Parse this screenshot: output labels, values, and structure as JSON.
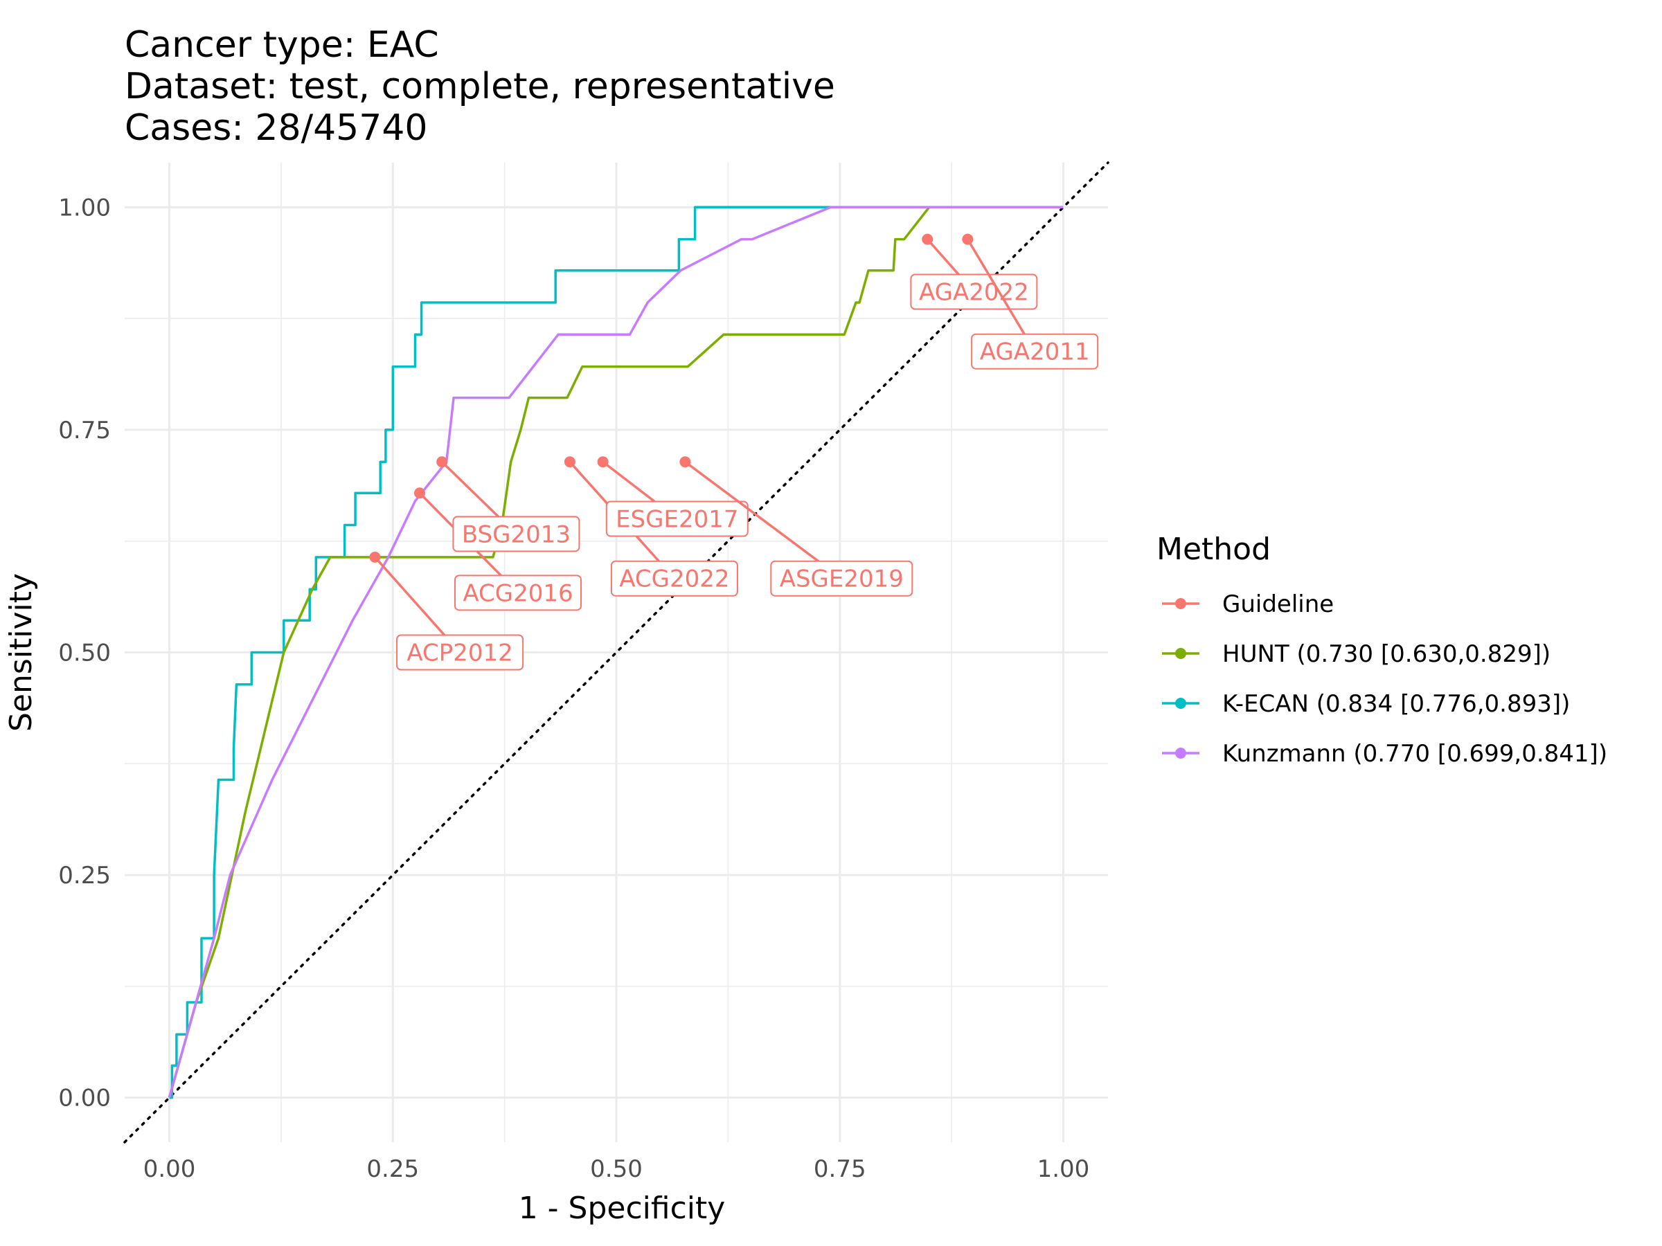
{
  "chart_data": {
    "type": "line",
    "title_lines": [
      "Cancer type: EAC",
      "Dataset: test, complete, representative",
      "Cases: 28/45740"
    ],
    "xlabel": "1 - Specificity",
    "ylabel": "Sensitivity",
    "xlim": [
      -0.05,
      1.05
    ],
    "ylim": [
      -0.05,
      1.05
    ],
    "x_ticks": [
      "0.00",
      "0.25",
      "0.50",
      "0.75",
      "1.00"
    ],
    "y_ticks": [
      "0.00",
      "0.25",
      "0.50",
      "0.75",
      "1.00"
    ],
    "grid": true,
    "legend": {
      "title": "Method",
      "position": "right",
      "entries": [
        {
          "label": "Guideline",
          "color": "#F8766D"
        },
        {
          "label": "HUNT (0.730 [0.630,0.829])",
          "color": "#7CAE00"
        },
        {
          "label": "K-ECAN (0.834 [0.776,0.893])",
          "color": "#00BFC4"
        },
        {
          "label": "Kunzmann (0.770 [0.699,0.841])",
          "color": "#C77CFF"
        }
      ]
    },
    "series": [
      {
        "name": "K-ECAN (0.834 [0.776,0.893])",
        "color": "#00BFC4",
        "points": [
          [
            0,
            0
          ],
          [
            0.003,
            0
          ],
          [
            0.003,
            0.036
          ],
          [
            0.008,
            0.036
          ],
          [
            0.008,
            0.071
          ],
          [
            0.02,
            0.071
          ],
          [
            0.02,
            0.107
          ],
          [
            0.036,
            0.107
          ],
          [
            0.036,
            0.179
          ],
          [
            0.05,
            0.179
          ],
          [
            0.05,
            0.25
          ],
          [
            0.055,
            0.357
          ],
          [
            0.072,
            0.357
          ],
          [
            0.072,
            0.393
          ],
          [
            0.075,
            0.464
          ],
          [
            0.092,
            0.464
          ],
          [
            0.092,
            0.5
          ],
          [
            0.128,
            0.5
          ],
          [
            0.128,
            0.536
          ],
          [
            0.157,
            0.536
          ],
          [
            0.157,
            0.571
          ],
          [
            0.164,
            0.571
          ],
          [
            0.164,
            0.607
          ],
          [
            0.196,
            0.607
          ],
          [
            0.196,
            0.643
          ],
          [
            0.208,
            0.643
          ],
          [
            0.208,
            0.679
          ],
          [
            0.236,
            0.679
          ],
          [
            0.236,
            0.714
          ],
          [
            0.242,
            0.714
          ],
          [
            0.242,
            0.75
          ],
          [
            0.25,
            0.75
          ],
          [
            0.25,
            0.821
          ],
          [
            0.275,
            0.821
          ],
          [
            0.275,
            0.857
          ],
          [
            0.282,
            0.857
          ],
          [
            0.282,
            0.893
          ],
          [
            0.432,
            0.893
          ],
          [
            0.432,
            0.929
          ],
          [
            0.57,
            0.929
          ],
          [
            0.57,
            0.964
          ],
          [
            0.588,
            0.964
          ],
          [
            0.588,
            1
          ],
          [
            1,
            1
          ]
        ]
      },
      {
        "name": "HUNT (0.730 [0.630,0.829])",
        "color": "#7CAE00",
        "points": [
          [
            0,
            0
          ],
          [
            0.03,
            0.107
          ],
          [
            0.055,
            0.179
          ],
          [
            0.085,
            0.321
          ],
          [
            0.128,
            0.5
          ],
          [
            0.16,
            0.571
          ],
          [
            0.18,
            0.607
          ],
          [
            0.362,
            0.607
          ],
          [
            0.372,
            0.643
          ],
          [
            0.382,
            0.714
          ],
          [
            0.393,
            0.75
          ],
          [
            0.402,
            0.786
          ],
          [
            0.445,
            0.786
          ],
          [
            0.462,
            0.821
          ],
          [
            0.58,
            0.821
          ],
          [
            0.62,
            0.857
          ],
          [
            0.755,
            0.857
          ],
          [
            0.768,
            0.893
          ],
          [
            0.772,
            0.893
          ],
          [
            0.782,
            0.929
          ],
          [
            0.81,
            0.929
          ],
          [
            0.812,
            0.964
          ],
          [
            0.822,
            0.964
          ],
          [
            0.85,
            1
          ],
          [
            1,
            1
          ]
        ]
      },
      {
        "name": "Kunzmann (0.770 [0.699,0.841])",
        "color": "#C77CFF",
        "points": [
          [
            0,
            0
          ],
          [
            0.05,
            0.179
          ],
          [
            0.068,
            0.25
          ],
          [
            0.115,
            0.357
          ],
          [
            0.205,
            0.536
          ],
          [
            0.245,
            0.607
          ],
          [
            0.275,
            0.67
          ],
          [
            0.31,
            0.714
          ],
          [
            0.318,
            0.786
          ],
          [
            0.38,
            0.786
          ],
          [
            0.435,
            0.857
          ],
          [
            0.515,
            0.857
          ],
          [
            0.535,
            0.893
          ],
          [
            0.572,
            0.929
          ],
          [
            0.64,
            0.964
          ],
          [
            0.652,
            0.964
          ],
          [
            0.74,
            1
          ],
          [
            1,
            1
          ]
        ]
      },
      {
        "name": "Guideline",
        "color": "#F8766D",
        "kind": "points",
        "points": [
          {
            "label": "ACP2012",
            "x": 0.23,
            "y": 0.607,
            "label_x": 0.325,
            "label_y": 0.5
          },
          {
            "label": "ACG2016",
            "x": 0.28,
            "y": 0.679,
            "label_x": 0.39,
            "label_y": 0.567
          },
          {
            "label": "BSG2013",
            "x": 0.305,
            "y": 0.714,
            "label_x": 0.388,
            "label_y": 0.633
          },
          {
            "label": "ACG2022",
            "x": 0.448,
            "y": 0.714,
            "label_x": 0.565,
            "label_y": 0.583
          },
          {
            "label": "ESGE2017",
            "x": 0.485,
            "y": 0.714,
            "label_x": 0.568,
            "label_y": 0.65
          },
          {
            "label": "ASGE2019",
            "x": 0.577,
            "y": 0.714,
            "label_x": 0.752,
            "label_y": 0.583
          },
          {
            "label": "AGA2022",
            "x": 0.848,
            "y": 0.964,
            "label_x": 0.9,
            "label_y": 0.905
          },
          {
            "label": "AGA2011",
            "x": 0.893,
            "y": 0.964,
            "label_x": 0.968,
            "label_y": 0.838
          }
        ]
      }
    ],
    "reference_line": {
      "style": "dotted",
      "from": [
        -0.05,
        -0.05
      ],
      "to": [
        1.05,
        1.05
      ]
    }
  }
}
